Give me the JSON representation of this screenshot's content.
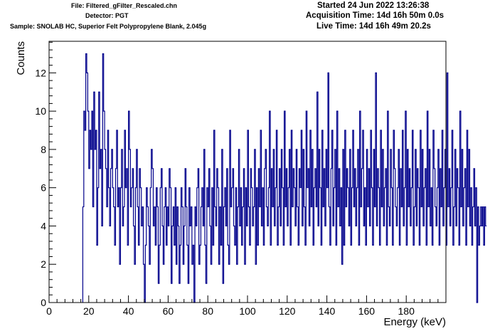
{
  "header": {
    "file": "File: Filtered_gFilter_Rescaled.chn",
    "detector": "Detector: PGT",
    "sample": "Sample: SNOLAB HC, Superior Felt Polypropylene Blank, 2.045g",
    "started": "Started 24 Jun 2022 13:26:38",
    "acquisition": "Acquisition Time: 14d 16h 50m 0.0s",
    "live": "Live Time: 14d 16h 49m 20.2s"
  },
  "colors": {
    "line": "#00008b",
    "axis": "#000000",
    "background": "#ffffff"
  },
  "chart_data": {
    "type": "line",
    "style": "histogram-step",
    "xlabel": "Energy (keV)",
    "ylabel": "Counts",
    "xlim": [
      0,
      200
    ],
    "ylim": [
      0,
      13.65
    ],
    "grid": false,
    "xticks": [
      0,
      20,
      40,
      60,
      80,
      100,
      120,
      140,
      160,
      180
    ],
    "yticks": [
      0,
      2,
      4,
      6,
      8,
      10,
      12
    ],
    "bin_width": 0.5,
    "x_start": 17,
    "series": [
      {
        "values": [
          5,
          10,
          9,
          13,
          12,
          10,
          7,
          9,
          8,
          10,
          5,
          11,
          8,
          9,
          3,
          6,
          11,
          7,
          8,
          4,
          13,
          10,
          8,
          7,
          5,
          9,
          6,
          4,
          7,
          8,
          6,
          5,
          3,
          7,
          9,
          5,
          6,
          2,
          6,
          8,
          4,
          5,
          9,
          6,
          7,
          3,
          10,
          8,
          5,
          6,
          7,
          4,
          2,
          6,
          8,
          5,
          3,
          7,
          6,
          4,
          5,
          2,
          0,
          3,
          6,
          5,
          4,
          2,
          6,
          8,
          7,
          4,
          5,
          3,
          6,
          5,
          1,
          3,
          6,
          7,
          4,
          2,
          5,
          6,
          3,
          5,
          4,
          7,
          6,
          1,
          4,
          5,
          3,
          6,
          2,
          5,
          4,
          1,
          3,
          6,
          5,
          2,
          4,
          7,
          5,
          3,
          1,
          6,
          4,
          5,
          2,
          3,
          0,
          5,
          4,
          6,
          7,
          2,
          3,
          5,
          6,
          4,
          8,
          3,
          1,
          6,
          5,
          7,
          4,
          2,
          6,
          3,
          9,
          5,
          4,
          7,
          6,
          2,
          5,
          3,
          8,
          1,
          5,
          6,
          4,
          7,
          3,
          2,
          9,
          5,
          6,
          7,
          4,
          3,
          6,
          2,
          5,
          8,
          4,
          6,
          3,
          5,
          7,
          2,
          6,
          4,
          9,
          5,
          3,
          7,
          6,
          4,
          5,
          8,
          2,
          6,
          3,
          7,
          5,
          9,
          4,
          6,
          3,
          7,
          8,
          5,
          4,
          6,
          10,
          3,
          7,
          5,
          8,
          4,
          6,
          9,
          3,
          5,
          7,
          4,
          8,
          6,
          3,
          10,
          5,
          7,
          4,
          6,
          8,
          3,
          9,
          5,
          7,
          6,
          4,
          8,
          5,
          3,
          7,
          6,
          9,
          4,
          8,
          5,
          3,
          10,
          6,
          7,
          4,
          9,
          5,
          8,
          3,
          6,
          7,
          5,
          11,
          4,
          8,
          6,
          3,
          9,
          5,
          7,
          4,
          8,
          6,
          12,
          5,
          3,
          7,
          9,
          4,
          6,
          8,
          3,
          10,
          5,
          7,
          4,
          6,
          2,
          8,
          3,
          9,
          5,
          7,
          6,
          4,
          8,
          3,
          6,
          9,
          5,
          7,
          4,
          6,
          8,
          3,
          10,
          5,
          7,
          9,
          4,
          6,
          3,
          8,
          5,
          7,
          4,
          9,
          6,
          3,
          8,
          5,
          12,
          4,
          7,
          6,
          3,
          9,
          5,
          8,
          4,
          6,
          7,
          3,
          10,
          5,
          4,
          8,
          6,
          3,
          9,
          7,
          5,
          4,
          6,
          8,
          3,
          7,
          5,
          9,
          4,
          6,
          10,
          3,
          8,
          5,
          7,
          4,
          6,
          9,
          3,
          5,
          8,
          4,
          7,
          6,
          3,
          9,
          5,
          8,
          4,
          6,
          7,
          3,
          10,
          5,
          8,
          4,
          6,
          3,
          9,
          7,
          5,
          4,
          6,
          8,
          3,
          7,
          5,
          9,
          4,
          6,
          8,
          3,
          12,
          5,
          7,
          4,
          6,
          9,
          3,
          5,
          8,
          4,
          7,
          6,
          3,
          10,
          5,
          8,
          4,
          6,
          7,
          3,
          9,
          5,
          8,
          4,
          6,
          3,
          5,
          7,
          4,
          6,
          0,
          5,
          3,
          4,
          5,
          4,
          5,
          3,
          5,
          4
        ]
      }
    ]
  }
}
